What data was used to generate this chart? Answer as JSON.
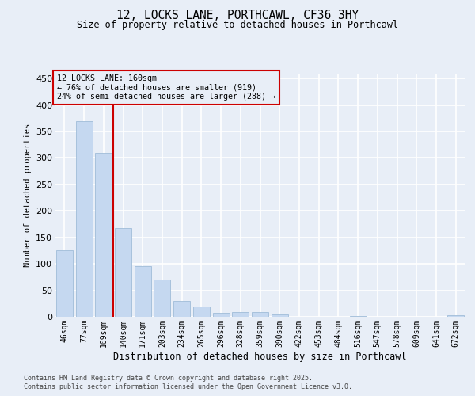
{
  "title_line1": "12, LOCKS LANE, PORTHCAWL, CF36 3HY",
  "title_line2": "Size of property relative to detached houses in Porthcawl",
  "xlabel": "Distribution of detached houses by size in Porthcawl",
  "ylabel": "Number of detached properties",
  "categories": [
    "46sqm",
    "77sqm",
    "109sqm",
    "140sqm",
    "171sqm",
    "203sqm",
    "234sqm",
    "265sqm",
    "296sqm",
    "328sqm",
    "359sqm",
    "390sqm",
    "422sqm",
    "453sqm",
    "484sqm",
    "516sqm",
    "547sqm",
    "578sqm",
    "609sqm",
    "641sqm",
    "672sqm"
  ],
  "values": [
    125,
    370,
    310,
    168,
    95,
    70,
    30,
    19,
    7,
    9,
    9,
    4,
    0,
    0,
    0,
    1,
    0,
    0,
    0,
    0,
    3
  ],
  "bar_color": "#c5d8f0",
  "bar_edge_color": "#a0bcd8",
  "vline_color": "#cc0000",
  "vline_x_index": 3,
  "annotation_text": "12 LOCKS LANE: 160sqm\n← 76% of detached houses are smaller (919)\n24% of semi-detached houses are larger (288) →",
  "annotation_box_color": "#cc0000",
  "ylim": [
    0,
    460
  ],
  "yticks": [
    0,
    50,
    100,
    150,
    200,
    250,
    300,
    350,
    400,
    450
  ],
  "background_color": "#e8eef7",
  "grid_color": "#ffffff",
  "footer_line1": "Contains HM Land Registry data © Crown copyright and database right 2025.",
  "footer_line2": "Contains public sector information licensed under the Open Government Licence v3.0."
}
